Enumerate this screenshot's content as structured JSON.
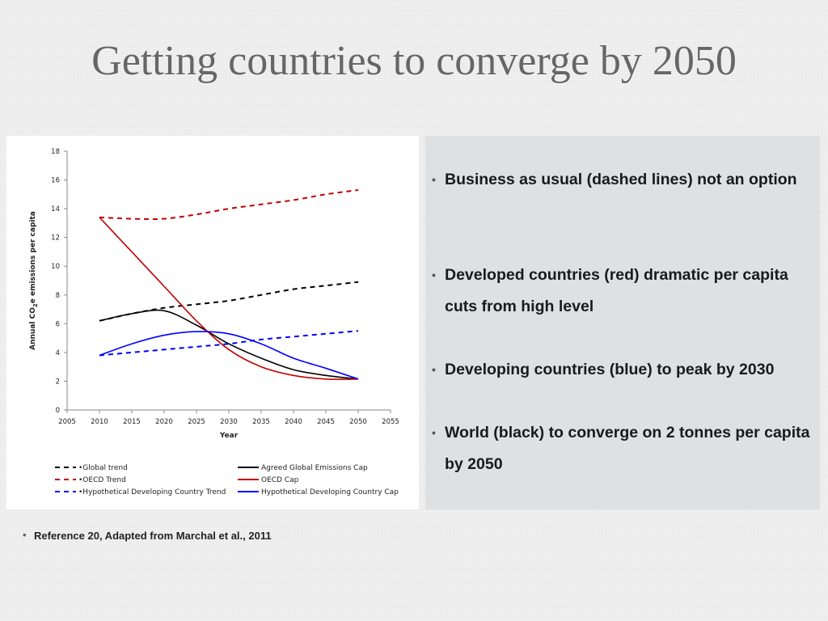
{
  "title": "Getting countries to converge by 2050",
  "bullets": [
    "Business as usual (dashed lines) not an option",
    "Developed countries (red) dramatic per capita cuts from high level",
    "Developing countries (blue) to peak by 2030",
    "World (black) to converge on 2 tonnes per capita by 2050"
  ],
  "reference": "Reference 20, Adapted from Marchal et al., 2011",
  "chart_data": {
    "type": "line",
    "title": "",
    "xlabel": "Year",
    "ylabel": "Annual CO2e emissions per capita",
    "ylabel_parts": [
      "Annual CO",
      "2",
      "e emissions per capita"
    ],
    "xlim": [
      2005,
      2055
    ],
    "ylim": [
      0,
      18
    ],
    "xticks": [
      "2005",
      "2010",
      "2015",
      "2020",
      "2025",
      "2030",
      "2035",
      "2040",
      "2045",
      "2050",
      "2055"
    ],
    "yticks": [
      "0",
      "2",
      "4",
      "6",
      "8",
      "10",
      "12",
      "14",
      "16",
      "18"
    ],
    "grid": false,
    "legend_position": "bottom",
    "x": [
      2010,
      2015,
      2020,
      2025,
      2030,
      2035,
      2040,
      2045,
      2050
    ],
    "series": [
      {
        "name": "Global trend",
        "color": "#000000",
        "dashed": true,
        "values": [
          6.2,
          6.7,
          7.1,
          7.35,
          7.6,
          8.0,
          8.4,
          8.65,
          8.9
        ]
      },
      {
        "name": "Agreed Global Emissions Cap",
        "color": "#000000",
        "dashed": false,
        "values": [
          6.2,
          6.7,
          6.9,
          5.9,
          4.6,
          3.6,
          2.8,
          2.4,
          2.15
        ]
      },
      {
        "name": "OECD Trend",
        "color": "#c00000",
        "dashed": true,
        "values": [
          13.4,
          13.3,
          13.3,
          13.6,
          14.0,
          14.3,
          14.6,
          15.0,
          15.3
        ]
      },
      {
        "name": "OECD Cap",
        "color": "#c00000",
        "dashed": false,
        "values": [
          13.4,
          11.0,
          8.6,
          6.2,
          4.2,
          3.0,
          2.4,
          2.15,
          2.15
        ]
      },
      {
        "name": "Hypothetical Developing Country Trend",
        "color": "#0000ff",
        "dashed": true,
        "values": [
          3.8,
          4.0,
          4.2,
          4.4,
          4.6,
          4.9,
          5.1,
          5.3,
          5.5
        ]
      },
      {
        "name": "Hypothetical Developing Country Cap",
        "color": "#0000ff",
        "dashed": false,
        "values": [
          3.8,
          4.6,
          5.2,
          5.45,
          5.3,
          4.6,
          3.6,
          2.9,
          2.15
        ]
      }
    ]
  }
}
